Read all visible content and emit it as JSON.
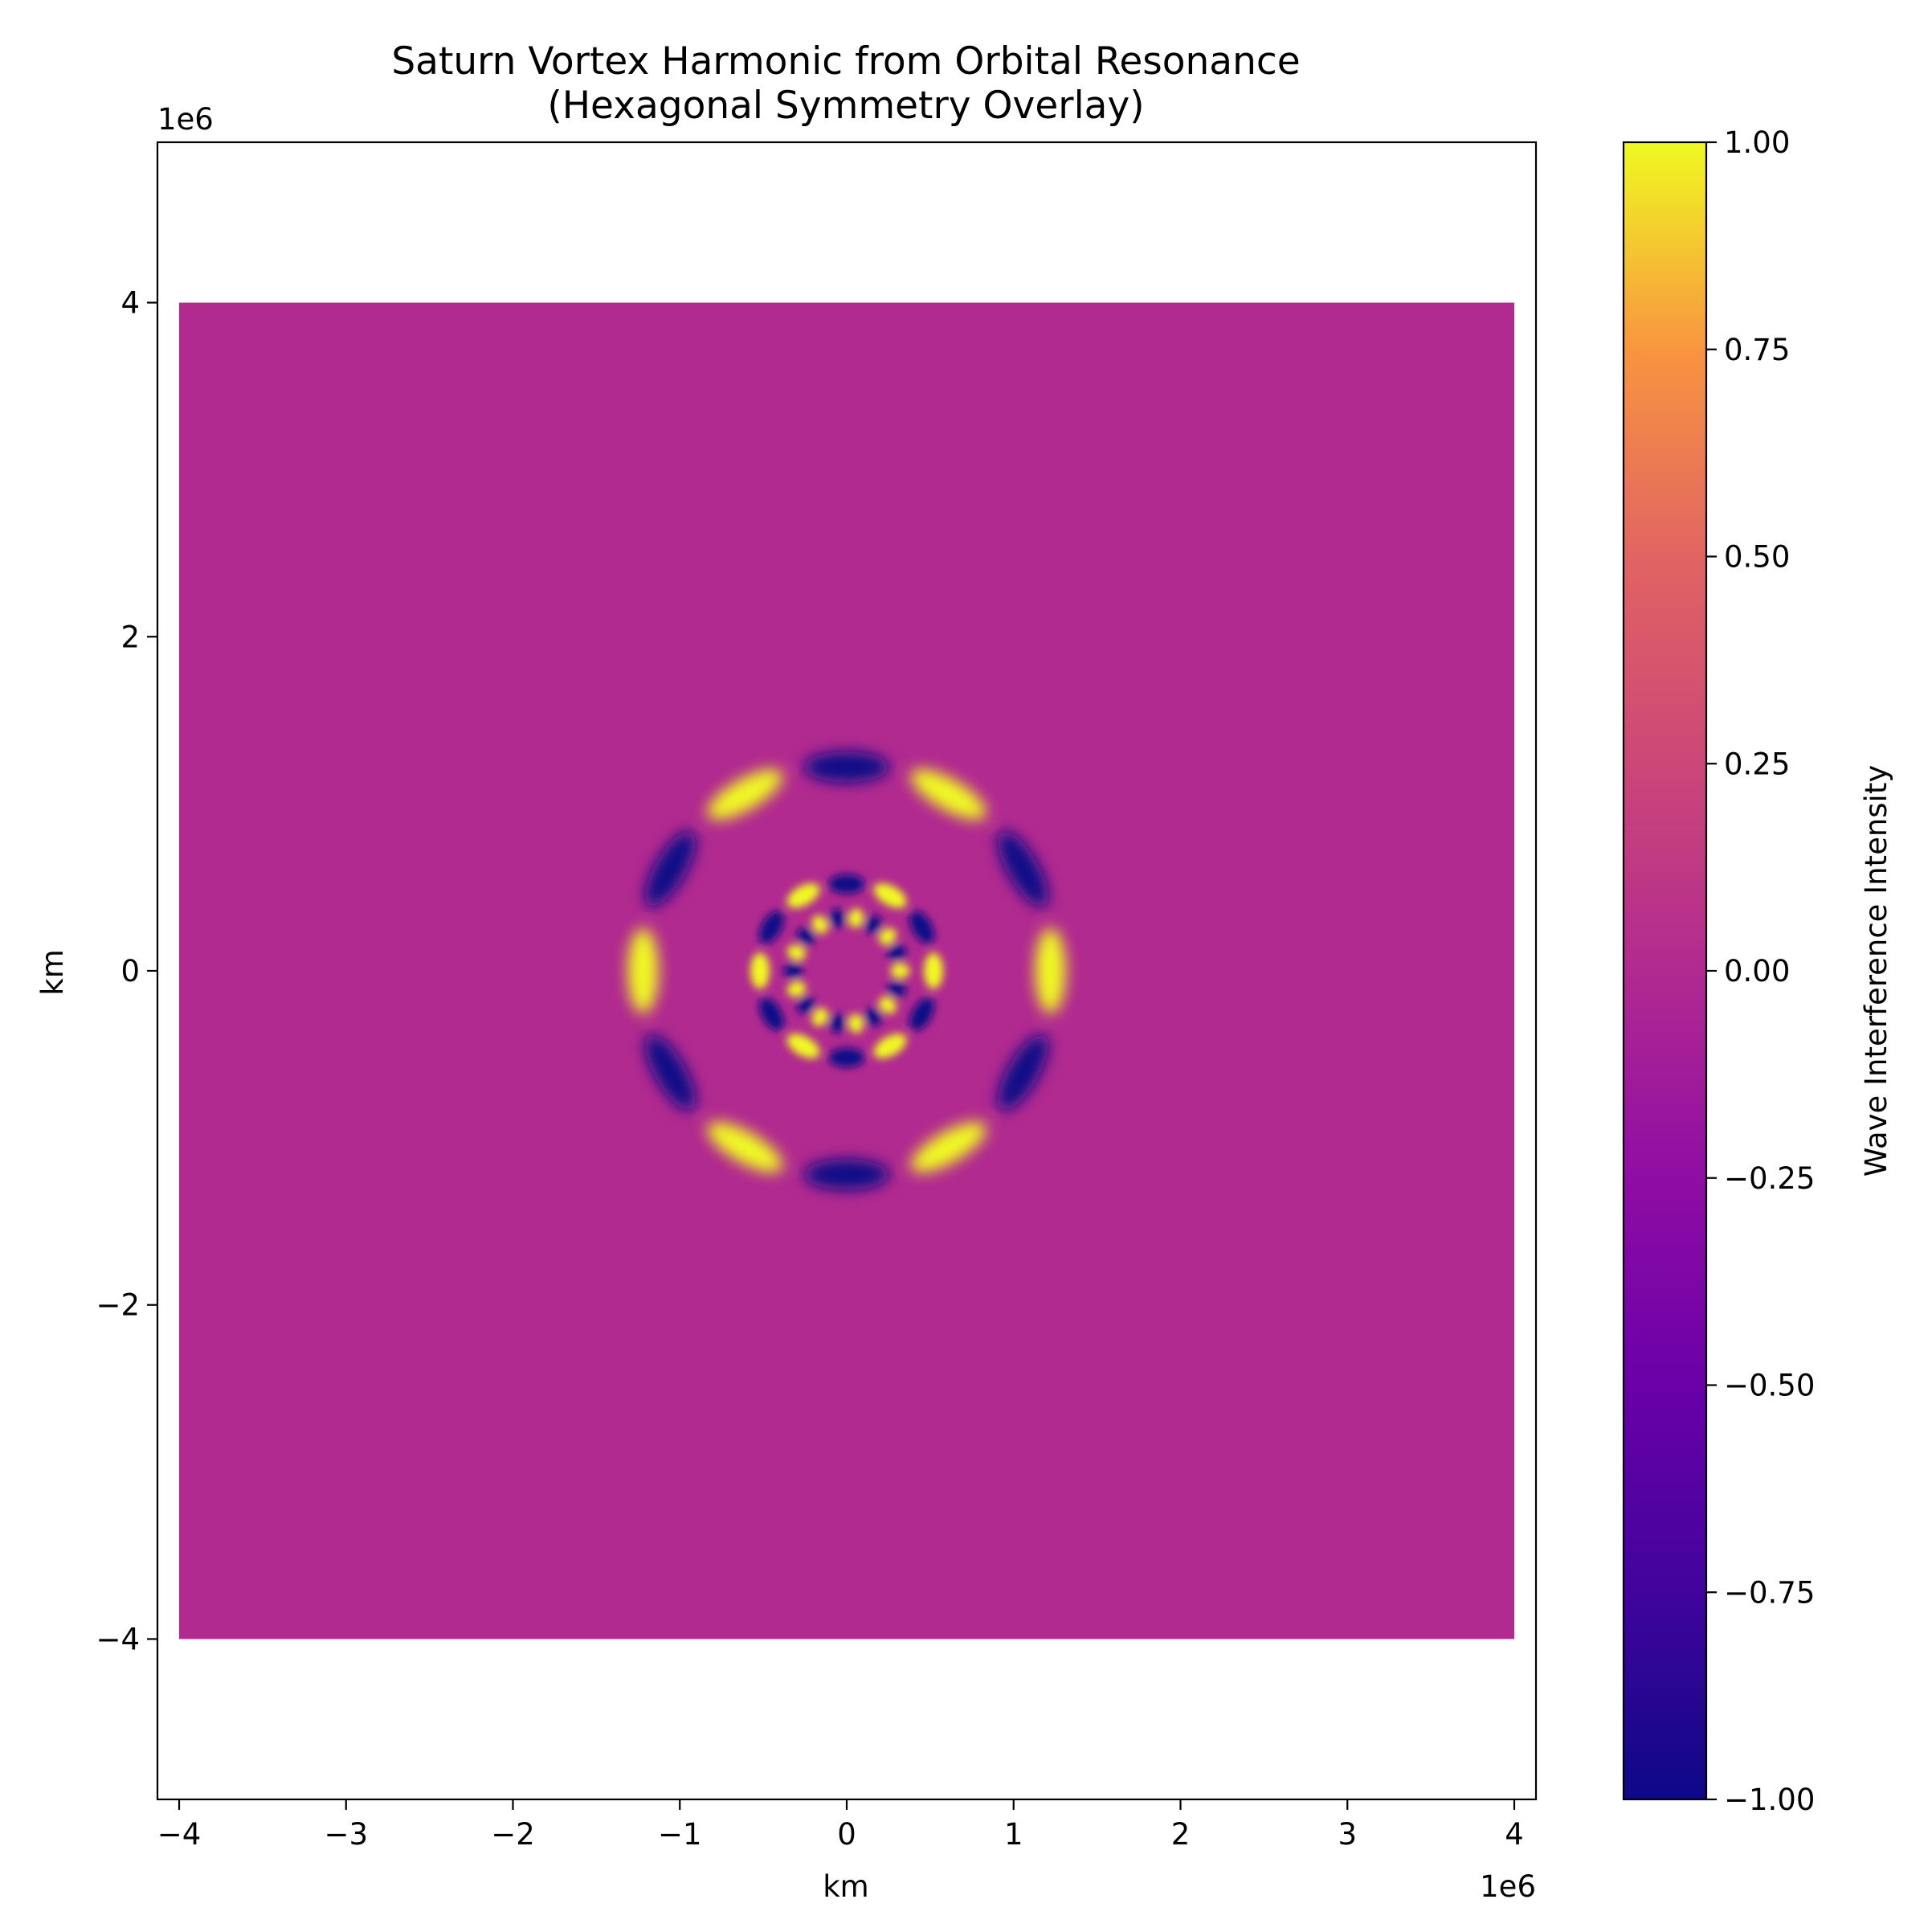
{
  "chart_data": {
    "type": "heatmap",
    "title": "Saturn Vortex Harmonic from Orbital Resonance\n(Hexagonal Symmetry Overlay)",
    "title_lines": [
      "Saturn Vortex Harmonic from Orbital Resonance",
      "(Hexagonal Symmetry Overlay)"
    ],
    "xlabel": "km",
    "ylabel": "km",
    "x_offset_label": "1e6",
    "y_offset_label": "1e6",
    "xlim": [
      -4.13,
      4.13
    ],
    "ylim": [
      -4.96,
      4.96
    ],
    "x_ticks": [
      -4,
      -3,
      -2,
      -1,
      0,
      1,
      2,
      3,
      4
    ],
    "y_ticks": [
      -4,
      -2,
      0,
      2,
      4
    ],
    "x_tick_labels": [
      "−4",
      "−3",
      "−2",
      "−1",
      "0",
      "1",
      "2",
      "3",
      "4"
    ],
    "y_tick_labels": [
      "−4",
      "−2",
      "0",
      "2",
      "4"
    ],
    "data_extent": {
      "x": [
        -4,
        4
      ],
      "y": [
        -4,
        4
      ]
    },
    "background_value": 0.0,
    "colormap": "plasma",
    "colorbar": {
      "label": "Wave Interference Intensity",
      "min": -1.0,
      "max": 1.0,
      "ticks": [
        1.0,
        0.75,
        0.5,
        0.25,
        0.0,
        -0.25,
        -0.5,
        -0.75,
        -1.0
      ],
      "tick_labels": [
        "1.00",
        "0.75",
        "0.50",
        "0.25",
        "0.00",
        "−0.25",
        "−0.50",
        "−0.75",
        "−1.00"
      ]
    },
    "rings": [
      {
        "name": "outer",
        "radius": 1.22,
        "lobes": 12,
        "peak": 1.0,
        "phase_deg": 0
      },
      {
        "name": "inner",
        "radius": 0.52,
        "lobes": 12,
        "peak": 1.0,
        "phase_deg": 0
      },
      {
        "name": "core",
        "radius": 0.32,
        "lobes": 18,
        "peak": 1.0,
        "phase_deg": 0
      }
    ]
  }
}
